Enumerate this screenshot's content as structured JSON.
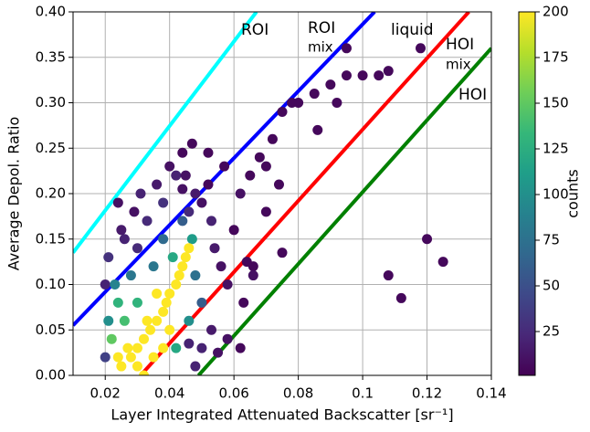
{
  "chart_data": {
    "type": "scatter",
    "x_label": "Layer Integrated Attenuated Backscatter [sr⁻¹]",
    "y_label": "Average Depol. Ratio",
    "colorbar_label": "counts",
    "colormap": "viridis",
    "clim": [
      1,
      200
    ],
    "cticks": [
      25,
      50,
      75,
      100,
      125,
      150,
      175,
      200
    ],
    "xlim": [
      0.01,
      0.14
    ],
    "ylim": [
      0,
      0.4
    ],
    "xticks": [
      0.02,
      0.04,
      0.06,
      0.08,
      0.1,
      0.12,
      0.14
    ],
    "yticks": [
      {
        "value": 0,
        "label": "0.00"
      },
      0.05,
      {
        "value": 0.1,
        "label": "0.10"
      },
      0.15,
      {
        "value": 0.2,
        "label": "0.20"
      },
      0.25,
      {
        "value": 0.3,
        "label": "0.30"
      },
      0.35,
      {
        "value": 0.4,
        "label": "0.40"
      }
    ],
    "grid": true,
    "x": [
      0.02,
      0.021,
      0.025,
      0.029,
      0.031,
      0.033,
      0.036,
      0.038,
      0.04,
      0.042,
      0.044,
      0.046,
      0.048,
      0.05,
      0.052,
      0.047,
      0.045,
      0.053,
      0.054,
      0.056,
      0.058,
      0.06,
      0.062,
      0.065,
      0.068,
      0.07,
      0.072,
      0.075,
      0.08,
      0.085,
      0.09,
      0.095,
      0.1,
      0.105,
      0.108,
      0.095,
      0.118,
      0.12,
      0.125,
      0.108,
      0.112,
      0.078,
      0.074,
      0.066,
      0.063,
      0.058,
      0.055,
      0.053,
      0.05,
      0.062,
      0.064,
      0.075,
      0.07,
      0.086,
      0.092,
      0.026,
      0.024,
      0.03,
      0.052,
      0.057,
      0.044,
      0.066,
      0.046,
      0.048,
      0.02,
      0.023,
      0.021,
      0.035,
      0.038,
      0.044,
      0.028,
      0.048,
      0.05,
      0.022,
      0.026,
      0.03,
      0.041,
      0.047,
      0.024,
      0.042,
      0.046,
      0.025,
      0.028,
      0.03,
      0.032,
      0.034,
      0.036,
      0.038,
      0.039,
      0.04,
      0.042,
      0.043,
      0.044,
      0.045,
      0.046,
      0.03,
      0.035,
      0.038,
      0.027,
      0.033,
      0.036,
      0.024,
      0.032,
      0.04
    ],
    "y": [
      0.1,
      0.13,
      0.16,
      0.18,
      0.2,
      0.17,
      0.21,
      0.19,
      0.23,
      0.22,
      0.205,
      0.18,
      0.2,
      0.19,
      0.21,
      0.255,
      0.22,
      0.17,
      0.14,
      0.12,
      0.1,
      0.16,
      0.2,
      0.22,
      0.24,
      0.23,
      0.26,
      0.29,
      0.3,
      0.31,
      0.32,
      0.33,
      0.33,
      0.33,
      0.335,
      0.36,
      0.36,
      0.15,
      0.125,
      0.11,
      0.085,
      0.3,
      0.21,
      0.12,
      0.08,
      0.04,
      0.025,
      0.05,
      0.03,
      0.03,
      0.125,
      0.135,
      0.18,
      0.27,
      0.3,
      0.15,
      0.19,
      0.14,
      0.245,
      0.23,
      0.245,
      0.11,
      0.035,
      0.01,
      0.02,
      0.1,
      0.06,
      0.12,
      0.15,
      0.17,
      0.11,
      0.11,
      0.08,
      0.04,
      0.06,
      0.08,
      0.13,
      0.15,
      0.08,
      0.03,
      0.06,
      0.01,
      0.02,
      0.03,
      0.04,
      0.05,
      0.06,
      0.07,
      0.08,
      0.09,
      0.1,
      0.11,
      0.12,
      0.13,
      0.14,
      0.01,
      0.02,
      0.03,
      0.03,
      0.06,
      0.09,
      0.02,
      0,
      0.05
    ],
    "counts": [
      20,
      30,
      15,
      10,
      20,
      25,
      15,
      30,
      10,
      20,
      10,
      25,
      15,
      10,
      5,
      5,
      10,
      20,
      15,
      10,
      10,
      5,
      10,
      5,
      5,
      5,
      5,
      5,
      5,
      5,
      5,
      5,
      5,
      5,
      5,
      5,
      5,
      5,
      5,
      5,
      5,
      5,
      5,
      5,
      5,
      10,
      10,
      15,
      20,
      5,
      5,
      5,
      5,
      5,
      5,
      20,
      10,
      25,
      5,
      5,
      5,
      10,
      20,
      20,
      40,
      90,
      100,
      80,
      70,
      60,
      80,
      75,
      60,
      150,
      140,
      130,
      120,
      110,
      130,
      120,
      100,
      200,
      200,
      200,
      200,
      200,
      200,
      200,
      200,
      200,
      200,
      200,
      200,
      200,
      200,
      200,
      200,
      200,
      200,
      200,
      200,
      200,
      200,
      200
    ],
    "lines": [
      {
        "color": "#00ffff",
        "x": [
          0.01,
          0.067
        ],
        "y": [
          0.135,
          0.4
        ]
      },
      {
        "color": "#0000ff",
        "x": [
          0.01,
          0.1037
        ],
        "y": [
          0.055,
          0.4
        ]
      },
      {
        "color": "#ff0000",
        "x": [
          0.031,
          0.133
        ],
        "y": [
          0,
          0.4
        ]
      },
      {
        "color": "#008000",
        "x": [
          0.049,
          0.14
        ],
        "y": [
          0,
          0.36
        ]
      }
    ],
    "annotations": [
      {
        "text": "ROI",
        "color": "#00ffff"
      },
      {
        "text": "ROI",
        "color": "#0000ff"
      },
      {
        "text": "mix",
        "color": "#0000ff"
      },
      {
        "text": "liquid",
        "color": "#000000"
      },
      {
        "text": "HOI",
        "color": "#ff0000"
      },
      {
        "text": "mix",
        "color": "#ff0000"
      },
      {
        "text": "HOI",
        "color": "#008000"
      }
    ]
  }
}
